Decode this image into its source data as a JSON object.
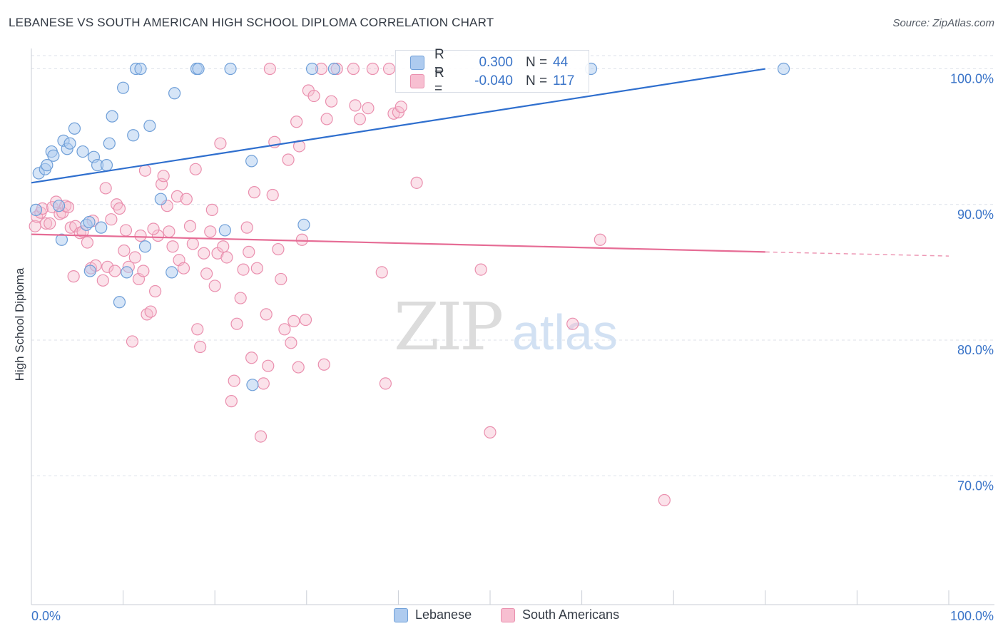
{
  "title": "LEBANESE VS SOUTH AMERICAN HIGH SCHOOL DIPLOMA CORRELATION CHART",
  "source": "Source: ZipAtlas.com",
  "watermark": {
    "part1": "ZIP",
    "part2": "atlas"
  },
  "legend": {
    "lebanese": {
      "label": "Lebanese",
      "r_label": "R =",
      "r_value": "0.300",
      "n_label": "N =",
      "n_value": "44"
    },
    "south_americans": {
      "label": "South Americans",
      "r_label": "R =",
      "r_value": "-0.040",
      "n_label": "N =",
      "n_value": "117"
    }
  },
  "colors": {
    "lebanese_fill": "#aecbef",
    "lebanese_stroke": "#6f9fd8",
    "lebanese_line": "#2f6fce",
    "south_fill": "#f7bfd1",
    "south_stroke": "#ea8fae",
    "south_line": "#e66c95",
    "axis_text": "#3a74c8",
    "grid": "#dde2ea"
  },
  "chart_data": {
    "type": "scatter",
    "title": "LEBANESE VS SOUTH AMERICAN HIGH SCHOOL DIPLOMA CORRELATION CHART",
    "xlabel": "",
    "ylabel": "High School Diploma",
    "xlim": [
      0,
      100
    ],
    "ylim": [
      60.5,
      101.5
    ],
    "x_tick_labels": [
      "0.0%",
      "100.0%"
    ],
    "y_ticks": [
      70,
      80,
      90,
      100
    ],
    "y_tick_labels": [
      "70.0%",
      "80.0%",
      "90.0%",
      "100.0%"
    ],
    "grid": true,
    "legend_position": "top-center",
    "series": [
      {
        "name": "Lebanese",
        "r": 0.3,
        "n": 44,
        "trend": {
          "x": [
            0,
            80
          ],
          "y": [
            91.6,
            100.0
          ]
        },
        "points": [
          [
            0.8,
            92.3
          ],
          [
            1.5,
            92.6
          ],
          [
            1.7,
            92.9
          ],
          [
            2.2,
            93.9
          ],
          [
            2.4,
            93.6
          ],
          [
            3.0,
            89.9
          ],
          [
            3.3,
            87.4
          ],
          [
            3.5,
            94.7
          ],
          [
            3.9,
            94.1
          ],
          [
            4.2,
            94.5
          ],
          [
            4.7,
            95.6
          ],
          [
            5.6,
            93.9
          ],
          [
            6.0,
            88.5
          ],
          [
            6.3,
            88.7
          ],
          [
            6.4,
            85.1
          ],
          [
            6.8,
            93.5
          ],
          [
            7.2,
            92.9
          ],
          [
            7.6,
            88.3
          ],
          [
            8.2,
            92.9
          ],
          [
            8.5,
            94.5
          ],
          [
            8.8,
            96.5
          ],
          [
            9.6,
            82.8
          ],
          [
            10.0,
            98.6
          ],
          [
            10.4,
            85.0
          ],
          [
            11.1,
            95.1
          ],
          [
            11.4,
            100.0
          ],
          [
            11.9,
            100.0
          ],
          [
            12.4,
            86.9
          ],
          [
            12.9,
            95.8
          ],
          [
            14.1,
            90.4
          ],
          [
            15.3,
            85.0
          ],
          [
            15.6,
            98.2
          ],
          [
            18.0,
            100.0
          ],
          [
            18.2,
            100.0
          ],
          [
            21.1,
            88.1
          ],
          [
            21.7,
            100.0
          ],
          [
            24.0,
            93.2
          ],
          [
            24.1,
            76.7
          ],
          [
            29.7,
            88.5
          ],
          [
            30.6,
            100.0
          ],
          [
            33.0,
            100.0
          ],
          [
            61.0,
            100.0
          ],
          [
            82.0,
            100.0
          ],
          [
            0.5,
            89.6
          ]
        ]
      },
      {
        "name": "South Americans",
        "r": -0.04,
        "n": 117,
        "trend": {
          "x": [
            0,
            80
          ],
          "y": [
            87.8,
            86.5
          ]
        },
        "trend_dashed": {
          "x": [
            80,
            100
          ],
          "y": [
            86.5,
            86.2
          ]
        },
        "points": [
          [
            0.4,
            88.4
          ],
          [
            0.6,
            89.1
          ],
          [
            1.0,
            89.4
          ],
          [
            1.2,
            89.7
          ],
          [
            1.6,
            88.6
          ],
          [
            2.0,
            88.6
          ],
          [
            2.3,
            89.8
          ],
          [
            2.7,
            90.2
          ],
          [
            3.1,
            89.3
          ],
          [
            3.4,
            89.4
          ],
          [
            3.7,
            89.9
          ],
          [
            4.0,
            89.8
          ],
          [
            4.3,
            88.3
          ],
          [
            4.6,
            84.7
          ],
          [
            4.8,
            88.4
          ],
          [
            5.3,
            87.9
          ],
          [
            5.6,
            88.0
          ],
          [
            6.1,
            87.2
          ],
          [
            6.5,
            85.3
          ],
          [
            6.7,
            88.8
          ],
          [
            7.0,
            85.5
          ],
          [
            7.8,
            84.4
          ],
          [
            8.1,
            91.2
          ],
          [
            8.3,
            85.4
          ],
          [
            8.7,
            88.9
          ],
          [
            9.1,
            85.1
          ],
          [
            9.3,
            90.0
          ],
          [
            9.6,
            89.7
          ],
          [
            10.1,
            86.6
          ],
          [
            10.3,
            88.1
          ],
          [
            10.6,
            85.4
          ],
          [
            11.0,
            79.9
          ],
          [
            11.3,
            86.1
          ],
          [
            11.7,
            84.5
          ],
          [
            11.9,
            87.7
          ],
          [
            12.2,
            85.1
          ],
          [
            12.4,
            92.5
          ],
          [
            12.6,
            81.9
          ],
          [
            13.0,
            82.1
          ],
          [
            13.5,
            83.6
          ],
          [
            13.8,
            87.7
          ],
          [
            14.2,
            91.5
          ],
          [
            14.4,
            92.1
          ],
          [
            14.8,
            89.9
          ],
          [
            15.0,
            88.0
          ],
          [
            15.4,
            86.9
          ],
          [
            15.9,
            90.6
          ],
          [
            16.1,
            85.9
          ],
          [
            16.6,
            85.3
          ],
          [
            16.9,
            90.4
          ],
          [
            17.3,
            88.4
          ],
          [
            17.6,
            87.1
          ],
          [
            17.9,
            92.6
          ],
          [
            18.1,
            80.8
          ],
          [
            18.4,
            79.5
          ],
          [
            18.8,
            86.4
          ],
          [
            19.1,
            84.9
          ],
          [
            19.5,
            88.0
          ],
          [
            19.7,
            89.6
          ],
          [
            20.0,
            84.0
          ],
          [
            20.3,
            86.4
          ],
          [
            20.6,
            94.5
          ],
          [
            20.9,
            86.9
          ],
          [
            21.3,
            86.1
          ],
          [
            21.8,
            75.5
          ],
          [
            22.1,
            77.0
          ],
          [
            22.4,
            81.2
          ],
          [
            22.8,
            83.1
          ],
          [
            23.1,
            85.2
          ],
          [
            23.5,
            88.3
          ],
          [
            23.7,
            86.5
          ],
          [
            24.0,
            78.7
          ],
          [
            24.3,
            90.9
          ],
          [
            24.6,
            85.3
          ],
          [
            25.0,
            72.9
          ],
          [
            25.3,
            76.8
          ],
          [
            25.6,
            81.9
          ],
          [
            25.8,
            78.1
          ],
          [
            26.3,
            90.7
          ],
          [
            26.5,
            94.6
          ],
          [
            26.9,
            86.7
          ],
          [
            27.2,
            84.5
          ],
          [
            27.6,
            80.8
          ],
          [
            28.0,
            93.3
          ],
          [
            28.3,
            79.8
          ],
          [
            28.6,
            81.4
          ],
          [
            28.9,
            96.1
          ],
          [
            29.2,
            94.3
          ],
          [
            29.5,
            87.4
          ],
          [
            29.9,
            81.5
          ],
          [
            30.2,
            98.4
          ],
          [
            30.8,
            98.0
          ],
          [
            31.6,
            100.0
          ],
          [
            31.9,
            78.2
          ],
          [
            32.2,
            96.3
          ],
          [
            32.7,
            97.6
          ],
          [
            33.3,
            100.0
          ],
          [
            35.1,
            100.0
          ],
          [
            35.3,
            97.3
          ],
          [
            35.8,
            96.3
          ],
          [
            36.7,
            97.1
          ],
          [
            38.2,
            85.0
          ],
          [
            38.6,
            76.8
          ],
          [
            39.0,
            100.0
          ],
          [
            39.5,
            96.7
          ],
          [
            40.0,
            96.8
          ],
          [
            40.3,
            97.2
          ],
          [
            42.0,
            91.6
          ],
          [
            49.0,
            85.2
          ],
          [
            50.0,
            73.2
          ],
          [
            59.0,
            81.2
          ],
          [
            62.0,
            87.4
          ],
          [
            69.0,
            68.2
          ],
          [
            26.0,
            100.0
          ],
          [
            29.1,
            78.0
          ],
          [
            37.2,
            100.0
          ],
          [
            13.3,
            88.2
          ]
        ]
      }
    ]
  }
}
